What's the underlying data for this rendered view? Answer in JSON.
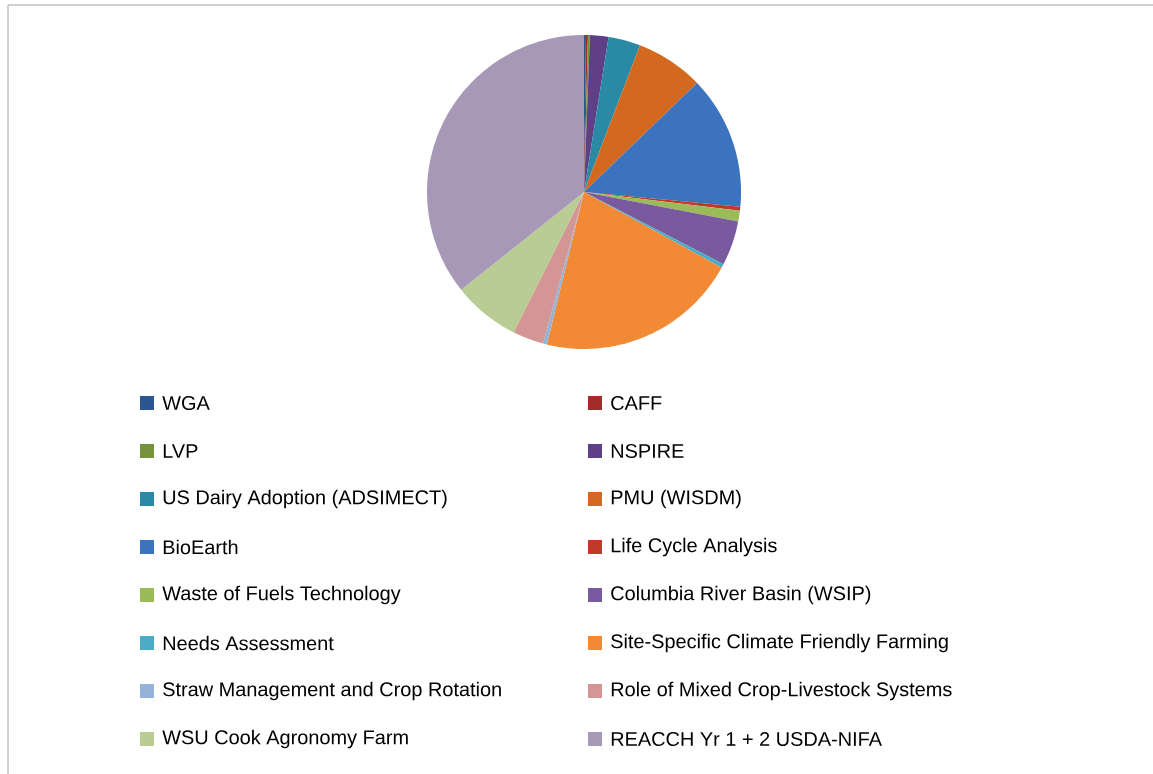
{
  "chart_data": {
    "type": "pie",
    "categories": [
      "WGA",
      "CAFF",
      "LVP",
      "NSPIRE",
      "US Dairy Adoption (ADSIMECT)",
      "PMU (WISDM)",
      "BioEarth",
      "Life Cycle Analysis",
      "Waste of Fuels Technology",
      "Columbia River Basin (WSIP)",
      "Needs Assessment",
      "Site-Specific Climate Friendly Farming",
      "Straw Management and Crop Rotation",
      "Role of Mixed Crop-Livestock Systems",
      "WSU Cook Agronomy Farm",
      "REACCH Yr 1 + 2 USDA-NIFA"
    ],
    "values": [
      0.2,
      0.2,
      0.2,
      1.9,
      3.3,
      7.0,
      13.7,
      0.4,
      1.1,
      4.6,
      0.4,
      20.8,
      0.4,
      3.2,
      6.9,
      35.7
    ],
    "colors": [
      "#2c5690",
      "#a12c2a",
      "#76923c",
      "#5f3f86",
      "#2a8aa6",
      "#d2691e",
      "#3b73bf",
      "#c0392b",
      "#9bbb59",
      "#7a5a9e",
      "#4bacc6",
      "#f28a35",
      "#95b3d7",
      "#d49694",
      "#b8cc94",
      "#a898b8"
    ],
    "legend": "bottom"
  }
}
